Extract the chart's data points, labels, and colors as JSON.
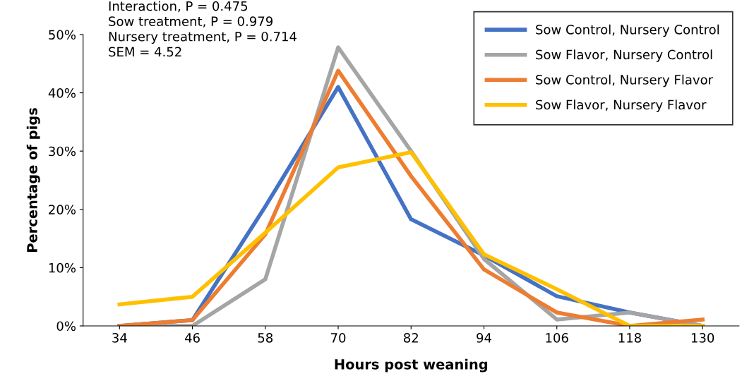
{
  "chart_data": {
    "type": "line",
    "xlabel": "Hours post weaning",
    "ylabel": "Percentage of pigs",
    "categories": [
      "34",
      "46",
      "58",
      "70",
      "82",
      "94",
      "106",
      "118",
      "130"
    ],
    "series": [
      {
        "name": "Sow Control, Nursery Control",
        "color": "#4472c4",
        "values": [
          0,
          1,
          20.5,
          41,
          18.3,
          12.1,
          5.1,
          2.3,
          0
        ]
      },
      {
        "name": "Sow Flavor, Nursery Control",
        "color": "#a5a5a5",
        "values": [
          0,
          0,
          8,
          47.8,
          30,
          11.5,
          1.1,
          2.3,
          0
        ]
      },
      {
        "name": "Sow Control, Nursery Flavor",
        "color": "#ed7d31",
        "values": [
          0,
          1,
          15.7,
          43.8,
          25.7,
          9.7,
          2.3,
          0,
          1.1
        ]
      },
      {
        "name": "Sow Flavor, Nursery Flavor",
        "color": "#ffc000",
        "values": [
          3.7,
          5,
          16,
          27.2,
          29.8,
          12.3,
          6.3,
          0,
          0
        ]
      }
    ],
    "ylim": [
      0,
      50
    ],
    "yticks": [
      {
        "value": 0,
        "label": "0%"
      },
      {
        "value": 10,
        "label": "10%"
      },
      {
        "value": 20,
        "label": "20%"
      },
      {
        "value": 30,
        "label": "30%"
      },
      {
        "value": 40,
        "label": "40%"
      },
      {
        "value": 50,
        "label": "50%"
      }
    ],
    "annotations": [
      "Interaction, P = 0.475",
      "Sow treatment, P = 0.979",
      "Nursery treatment, P = 0.714",
      "SEM = 4.52"
    ],
    "grid": false,
    "legend": "top right",
    "marker": "none",
    "line_style": "solid"
  }
}
